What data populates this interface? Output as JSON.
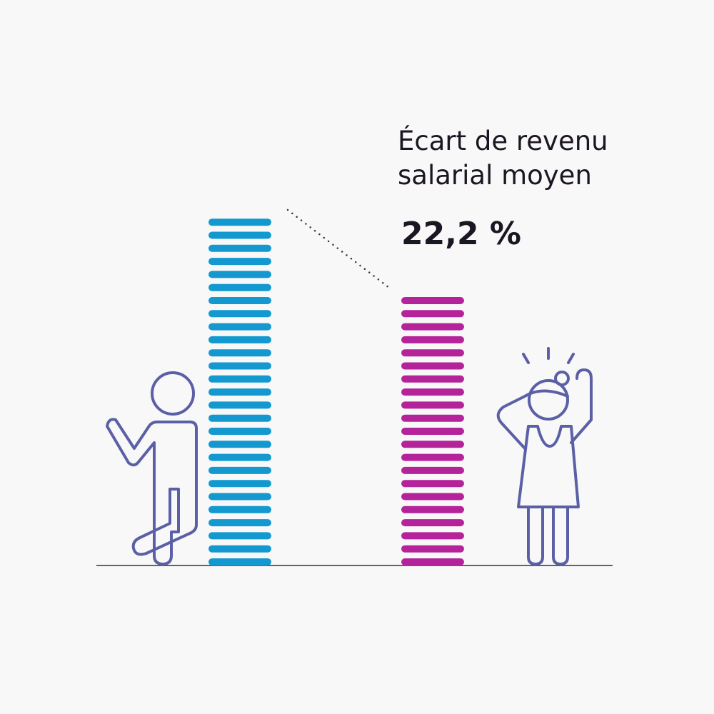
{
  "chart_data": {
    "type": "gap",
    "title_lines": [
      "Écart de revenu",
      "salarial moyen"
    ],
    "value": 22.2,
    "value_label": "22,2 %",
    "colors": [
      "#1399d0",
      "#b5239b"
    ]
  }
}
